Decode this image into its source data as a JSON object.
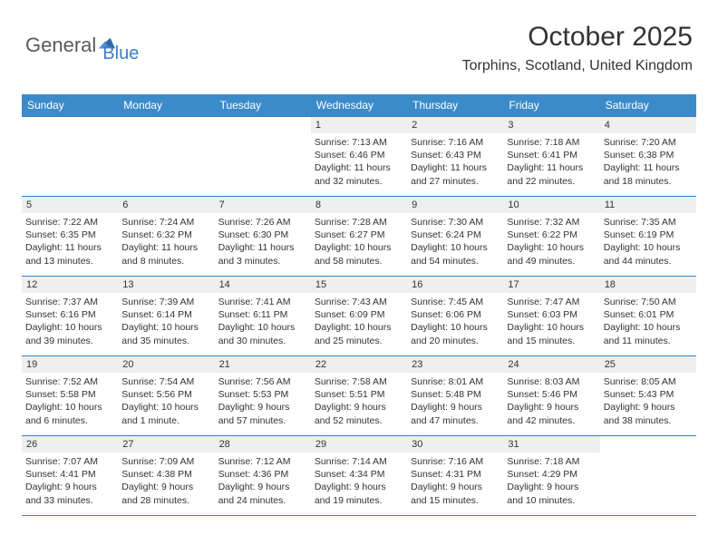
{
  "brand": {
    "text1": "General",
    "text2": "Blue",
    "color1": "#5a5a5a",
    "color2": "#3b7fc4",
    "icon_color": "#2e6aa8"
  },
  "header": {
    "month_title": "October 2025",
    "location": "Torphins, Scotland, United Kingdom"
  },
  "style": {
    "header_bg": "#3b8bc9",
    "header_fg": "#ffffff",
    "border_color": "#3b7fc4",
    "daynum_bg": "#efefef",
    "page_bg": "#ffffff",
    "text_color": "#333333",
    "day_fontsize": 11,
    "info_fontsize": 10.5,
    "th_fontsize": 12,
    "title_fontsize": 30,
    "location_fontsize": 16
  },
  "day_headers": [
    "Sunday",
    "Monday",
    "Tuesday",
    "Wednesday",
    "Thursday",
    "Friday",
    "Saturday"
  ],
  "weeks": [
    [
      null,
      null,
      null,
      {
        "n": "1",
        "sr": "7:13 AM",
        "ss": "6:46 PM",
        "dl": "11 hours and 32 minutes."
      },
      {
        "n": "2",
        "sr": "7:16 AM",
        "ss": "6:43 PM",
        "dl": "11 hours and 27 minutes."
      },
      {
        "n": "3",
        "sr": "7:18 AM",
        "ss": "6:41 PM",
        "dl": "11 hours and 22 minutes."
      },
      {
        "n": "4",
        "sr": "7:20 AM",
        "ss": "6:38 PM",
        "dl": "11 hours and 18 minutes."
      }
    ],
    [
      {
        "n": "5",
        "sr": "7:22 AM",
        "ss": "6:35 PM",
        "dl": "11 hours and 13 minutes."
      },
      {
        "n": "6",
        "sr": "7:24 AM",
        "ss": "6:32 PM",
        "dl": "11 hours and 8 minutes."
      },
      {
        "n": "7",
        "sr": "7:26 AM",
        "ss": "6:30 PM",
        "dl": "11 hours and 3 minutes."
      },
      {
        "n": "8",
        "sr": "7:28 AM",
        "ss": "6:27 PM",
        "dl": "10 hours and 58 minutes."
      },
      {
        "n": "9",
        "sr": "7:30 AM",
        "ss": "6:24 PM",
        "dl": "10 hours and 54 minutes."
      },
      {
        "n": "10",
        "sr": "7:32 AM",
        "ss": "6:22 PM",
        "dl": "10 hours and 49 minutes."
      },
      {
        "n": "11",
        "sr": "7:35 AM",
        "ss": "6:19 PM",
        "dl": "10 hours and 44 minutes."
      }
    ],
    [
      {
        "n": "12",
        "sr": "7:37 AM",
        "ss": "6:16 PM",
        "dl": "10 hours and 39 minutes."
      },
      {
        "n": "13",
        "sr": "7:39 AM",
        "ss": "6:14 PM",
        "dl": "10 hours and 35 minutes."
      },
      {
        "n": "14",
        "sr": "7:41 AM",
        "ss": "6:11 PM",
        "dl": "10 hours and 30 minutes."
      },
      {
        "n": "15",
        "sr": "7:43 AM",
        "ss": "6:09 PM",
        "dl": "10 hours and 25 minutes."
      },
      {
        "n": "16",
        "sr": "7:45 AM",
        "ss": "6:06 PM",
        "dl": "10 hours and 20 minutes."
      },
      {
        "n": "17",
        "sr": "7:47 AM",
        "ss": "6:03 PM",
        "dl": "10 hours and 15 minutes."
      },
      {
        "n": "18",
        "sr": "7:50 AM",
        "ss": "6:01 PM",
        "dl": "10 hours and 11 minutes."
      }
    ],
    [
      {
        "n": "19",
        "sr": "7:52 AM",
        "ss": "5:58 PM",
        "dl": "10 hours and 6 minutes."
      },
      {
        "n": "20",
        "sr": "7:54 AM",
        "ss": "5:56 PM",
        "dl": "10 hours and 1 minute."
      },
      {
        "n": "21",
        "sr": "7:56 AM",
        "ss": "5:53 PM",
        "dl": "9 hours and 57 minutes."
      },
      {
        "n": "22",
        "sr": "7:58 AM",
        "ss": "5:51 PM",
        "dl": "9 hours and 52 minutes."
      },
      {
        "n": "23",
        "sr": "8:01 AM",
        "ss": "5:48 PM",
        "dl": "9 hours and 47 minutes."
      },
      {
        "n": "24",
        "sr": "8:03 AM",
        "ss": "5:46 PM",
        "dl": "9 hours and 42 minutes."
      },
      {
        "n": "25",
        "sr": "8:05 AM",
        "ss": "5:43 PM",
        "dl": "9 hours and 38 minutes."
      }
    ],
    [
      {
        "n": "26",
        "sr": "7:07 AM",
        "ss": "4:41 PM",
        "dl": "9 hours and 33 minutes."
      },
      {
        "n": "27",
        "sr": "7:09 AM",
        "ss": "4:38 PM",
        "dl": "9 hours and 28 minutes."
      },
      {
        "n": "28",
        "sr": "7:12 AM",
        "ss": "4:36 PM",
        "dl": "9 hours and 24 minutes."
      },
      {
        "n": "29",
        "sr": "7:14 AM",
        "ss": "4:34 PM",
        "dl": "9 hours and 19 minutes."
      },
      {
        "n": "30",
        "sr": "7:16 AM",
        "ss": "4:31 PM",
        "dl": "9 hours and 15 minutes."
      },
      {
        "n": "31",
        "sr": "7:18 AM",
        "ss": "4:29 PM",
        "dl": "9 hours and 10 minutes."
      },
      null
    ]
  ],
  "labels": {
    "sunrise": "Sunrise:",
    "sunset": "Sunset:",
    "daylight": "Daylight:"
  }
}
